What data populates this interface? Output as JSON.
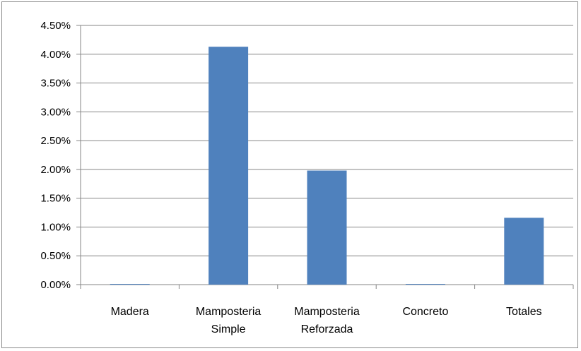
{
  "chart_data": {
    "type": "bar",
    "title": "",
    "xlabel": "",
    "ylabel": "",
    "categories": [
      [
        "Madera"
      ],
      [
        "Mamposteria",
        "Simple"
      ],
      [
        "Mamposteria",
        "Reforzada"
      ],
      [
        "Concreto"
      ],
      [
        "Totales"
      ]
    ],
    "values": [
      0.0,
      4.13,
      1.98,
      0.0,
      1.16
    ],
    "value_unit": "%",
    "ylim": [
      0,
      4.5
    ],
    "yticks": [
      "0.00%",
      "0.50%",
      "1.00%",
      "1.50%",
      "2.00%",
      "2.50%",
      "3.00%",
      "3.50%",
      "4.00%",
      "4.50%"
    ],
    "grid": true,
    "legend": "none",
    "colors": {
      "bar": "#4f81bd",
      "grid": "#868686",
      "axis": "#868686"
    }
  }
}
